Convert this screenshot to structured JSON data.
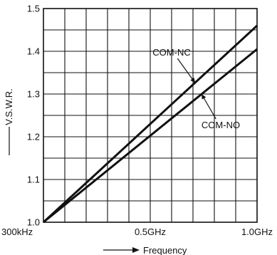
{
  "chart_data": {
    "type": "line",
    "xlabel": "Frequency",
    "ylabel": "V.S.W.R.",
    "x_tick_labels": [
      "300kHz",
      "0.5GHz",
      "1.0GHz"
    ],
    "x_ticks": [
      0,
      0.5,
      1.0
    ],
    "xlim": [
      0,
      1.0
    ],
    "y_tick_labels": [
      "1.0",
      "1.1",
      "1.2",
      "1.3",
      "1.4",
      "1.5"
    ],
    "y_ticks": [
      1.0,
      1.1,
      1.2,
      1.3,
      1.4,
      1.5
    ],
    "ylim": [
      1.0,
      1.5
    ],
    "grid": true,
    "x_divisions": 10,
    "y_divisions": 10,
    "series": [
      {
        "name": "COM-NC",
        "x": [
          0,
          1.0
        ],
        "y": [
          1.0,
          1.46
        ]
      },
      {
        "name": "COM-NO",
        "x": [
          0,
          1.0
        ],
        "y": [
          1.0,
          1.405
        ]
      }
    ],
    "annotations": [
      {
        "text": "COM-NC",
        "series": "COM-NC",
        "x": 0.71,
        "y": 1.326,
        "label_x": 0.6,
        "label_y": 1.39
      },
      {
        "text": "COM-NO",
        "series": "COM-NO",
        "x": 0.74,
        "y": 1.3,
        "label_x": 0.83,
        "label_y": 1.22
      }
    ]
  }
}
